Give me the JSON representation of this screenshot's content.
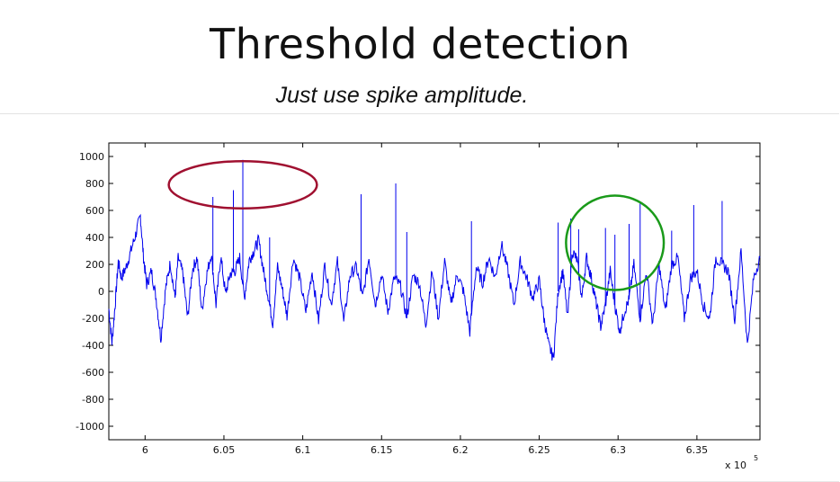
{
  "slide": {
    "title": "Threshold detection",
    "subtitle": "Just use spike amplitude."
  },
  "colors": {
    "trace": "#0000ee",
    "annotation_red": "#a01030",
    "annotation_green": "#1a9a1a",
    "axes": "#000000"
  },
  "chart_data": {
    "type": "line",
    "title": "",
    "xlabel": "",
    "ylabel": "",
    "x_multiplier_label": "x 10",
    "x_multiplier_exponent": "5",
    "xlim": [
      5.977,
      6.39
    ],
    "ylim": [
      -1100,
      1100
    ],
    "x_ticks": [
      6,
      6.05,
      6.1,
      6.15,
      6.2,
      6.25,
      6.3,
      6.35
    ],
    "x_tick_labels": [
      "6",
      "6.05",
      "6.1",
      "6.15",
      "6.2",
      "6.25",
      "6.3",
      "6.35"
    ],
    "y_ticks": [
      1000,
      800,
      600,
      400,
      200,
      0,
      -200,
      -400,
      -600,
      -800,
      -1000
    ],
    "y_tick_labels": [
      "1000",
      "800",
      "600",
      "400",
      "200",
      "0",
      "-200",
      "-400",
      "-600",
      "-800",
      "-1000"
    ],
    "grid": false,
    "series": [
      {
        "color": "#0000ee",
        "x": [
          5.977,
          5.979,
          5.981,
          5.983,
          5.985,
          5.988,
          5.991,
          5.994,
          5.997,
          5.999,
          6.001,
          6.004,
          6.007,
          6.01,
          6.013,
          6.016,
          6.019,
          6.021,
          6.024,
          6.027,
          6.03,
          6.033,
          6.036,
          6.039,
          6.042,
          6.045,
          6.048,
          6.051,
          6.054,
          6.057,
          6.06,
          6.063,
          6.066,
          6.069,
          6.072,
          6.075,
          6.078,
          6.081,
          6.084,
          6.087,
          6.09,
          6.094,
          6.098,
          6.102,
          6.106,
          6.11,
          6.114,
          6.118,
          6.122,
          6.126,
          6.13,
          6.134,
          6.138,
          6.142,
          6.146,
          6.15,
          6.154,
          6.158,
          6.162,
          6.166,
          6.17,
          6.174,
          6.178,
          6.182,
          6.186,
          6.19,
          6.194,
          6.198,
          6.202,
          6.206,
          6.21,
          6.214,
          6.218,
          6.222,
          6.226,
          6.23,
          6.234,
          6.238,
          6.242,
          6.246,
          6.25,
          6.253,
          6.256,
          6.259,
          6.262,
          6.265,
          6.268,
          6.271,
          6.274,
          6.277,
          6.28,
          6.283,
          6.286,
          6.289,
          6.292,
          6.295,
          6.298,
          6.301,
          6.304,
          6.307,
          6.31,
          6.314,
          6.318,
          6.322,
          6.326,
          6.33,
          6.334,
          6.338,
          6.342,
          6.346,
          6.35,
          6.354,
          6.358,
          6.362,
          6.366,
          6.37,
          6.374,
          6.378,
          6.382,
          6.386,
          6.39
        ],
        "values": [
          -130,
          -380,
          -100,
          220,
          100,
          180,
          300,
          420,
          560,
          250,
          50,
          150,
          -50,
          -350,
          20,
          210,
          -50,
          250,
          130,
          -200,
          160,
          250,
          -150,
          120,
          280,
          -100,
          260,
          -20,
          130,
          150,
          250,
          -50,
          230,
          300,
          380,
          160,
          -30,
          -240,
          180,
          20,
          -180,
          250,
          100,
          -150,
          150,
          -220,
          200,
          -100,
          220,
          -230,
          120,
          180,
          -50,
          250,
          -100,
          130,
          -150,
          100,
          40,
          -200,
          120,
          60,
          -250,
          150,
          -200,
          220,
          -100,
          130,
          0,
          -300,
          180,
          60,
          250,
          100,
          350,
          160,
          -100,
          220,
          100,
          -50,
          80,
          -200,
          -400,
          -500,
          0,
          150,
          -200,
          300,
          230,
          -50,
          250,
          100,
          -80,
          -260,
          -100,
          150,
          -100,
          -300,
          -150,
          -60,
          200,
          -200,
          150,
          -250,
          200,
          -150,
          200,
          250,
          -200,
          100,
          150,
          -100,
          -210,
          250,
          200,
          150,
          -200,
          300,
          -400,
          100,
          250
        ]
      }
    ],
    "spikes": [
      {
        "x": 6.043,
        "y": 700
      },
      {
        "x": 6.056,
        "y": 750
      },
      {
        "x": 6.062,
        "y": 975
      },
      {
        "x": 6.079,
        "y": 400
      },
      {
        "x": 6.137,
        "y": 720
      },
      {
        "x": 6.159,
        "y": 800
      },
      {
        "x": 6.166,
        "y": 440
      },
      {
        "x": 6.207,
        "y": 520
      },
      {
        "x": 6.262,
        "y": 510
      },
      {
        "x": 6.27,
        "y": 540
      },
      {
        "x": 6.275,
        "y": 460
      },
      {
        "x": 6.292,
        "y": 470
      },
      {
        "x": 6.298,
        "y": 420
      },
      {
        "x": 6.307,
        "y": 500
      },
      {
        "x": 6.314,
        "y": 650
      },
      {
        "x": 6.334,
        "y": 450
      },
      {
        "x": 6.348,
        "y": 640
      },
      {
        "x": 6.366,
        "y": 670
      }
    ],
    "annotations": [
      {
        "shape": "ellipse",
        "color": "#a01030",
        "cx": 6.062,
        "cy": 790,
        "rx": 0.047,
        "ry": 175
      },
      {
        "shape": "circle",
        "color": "#1a9a1a",
        "cx": 6.298,
        "cy": 360,
        "rx": 0.031,
        "ry": 350
      }
    ]
  }
}
